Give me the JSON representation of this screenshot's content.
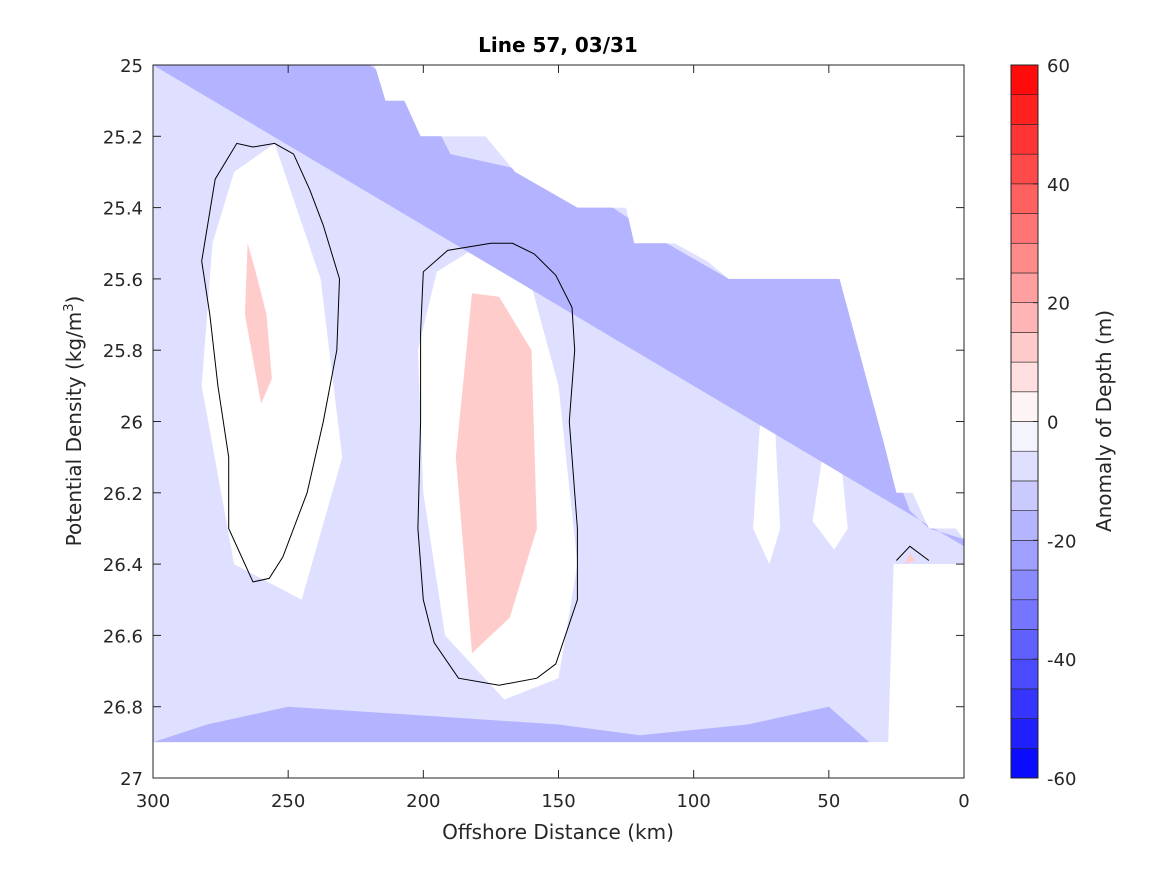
{
  "chart_data": {
    "type": "contour",
    "title": "Line 57, 03/31",
    "xlabel": "Offshore Distance (km)",
    "ylabel_main": "Potential Density (kg/m",
    "ylabel_sup": "3",
    "ylabel_tail": ")",
    "xlim": [
      300,
      0
    ],
    "ylim": [
      25,
      27
    ],
    "x_reversed": true,
    "y_reversed": true,
    "xticks": [
      300,
      250,
      200,
      150,
      100,
      50,
      0
    ],
    "yticks": [
      "25",
      "25.2",
      "25.4",
      "25.6",
      "25.8",
      "26",
      "26.2",
      "26.4",
      "26.6",
      "26.8",
      "27"
    ],
    "colorbar": {
      "label": "Anomaly of Depth (m)",
      "range": [
        -60,
        60
      ],
      "ticks": [
        60,
        40,
        20,
        0,
        -20,
        -40,
        -60
      ],
      "levels": [
        -60,
        -55,
        -50,
        -45,
        -40,
        -35,
        -30,
        -25,
        -20,
        -15,
        -10,
        -5,
        0,
        5,
        10,
        15,
        20,
        25,
        30,
        35,
        40,
        45,
        50,
        55,
        60
      ]
    },
    "data_boundary": {
      "x_km": [
        300,
        300,
        218,
        214,
        207,
        201,
        177,
        166,
        143,
        125,
        122,
        107,
        95,
        87,
        46,
        30,
        25,
        19,
        13,
        3,
        0,
        0,
        9,
        20,
        26,
        28,
        35,
        35,
        300
      ],
      "density": [
        26.9,
        25,
        25,
        25.1,
        25.1,
        25.2,
        25.2,
        25.3,
        25.4,
        25.4,
        25.5,
        25.5,
        25.55,
        25.6,
        25.6,
        26.05,
        26.2,
        26.2,
        26.3,
        26.3,
        26.33,
        26.4,
        26.4,
        26.4,
        26.4,
        26.9,
        26.9,
        26.9,
        26.9
      ]
    },
    "contour_features": [
      {
        "kind": "positive-core",
        "x_km": [
          255,
          270,
          278,
          282,
          270,
          245,
          230,
          238,
          255
        ],
        "density": [
          25.22,
          25.3,
          25.5,
          25.9,
          26.4,
          26.5,
          26.1,
          25.6,
          25.22
        ]
      },
      {
        "kind": "positive-core",
        "x_km": [
          178,
          195,
          202,
          200,
          192,
          170,
          150,
          143,
          150,
          160,
          178
        ],
        "density": [
          25.5,
          25.58,
          25.8,
          26.2,
          26.6,
          26.78,
          26.72,
          26.4,
          25.9,
          25.62,
          25.5
        ]
      },
      {
        "kind": "weak-positive",
        "x_km": [
          75,
          70,
          68,
          72,
          78,
          75
        ],
        "density": [
          25.95,
          26.0,
          26.3,
          26.4,
          26.3,
          25.95
        ]
      },
      {
        "kind": "weak-positive",
        "x_km": [
          52,
          45,
          43,
          48,
          56,
          52
        ],
        "density": [
          26.08,
          26.15,
          26.3,
          26.36,
          26.28,
          26.08
        ]
      },
      {
        "kind": "peak",
        "x_km": [
          265,
          262,
          258,
          256,
          260,
          266,
          265
        ],
        "density": [
          25.5,
          25.58,
          25.7,
          25.88,
          25.95,
          25.7,
          25.5
        ]
      },
      {
        "kind": "peak",
        "x_km": [
          182,
          172,
          160,
          158,
          168,
          182,
          188,
          182
        ],
        "density": [
          25.64,
          25.65,
          25.8,
          26.3,
          26.55,
          26.65,
          26.1,
          25.64
        ]
      },
      {
        "kind": "peak",
        "x_km": [
          18,
          20,
          22,
          18
        ],
        "density": [
          26.39,
          26.37,
          26.4,
          26.39
        ]
      },
      {
        "kind": "negative-core",
        "x_km": [
          300,
          280,
          240,
          220,
          200,
          190,
          160,
          130,
          110,
          87,
          55,
          46,
          30,
          20,
          13,
          0,
          0,
          300
        ],
        "density": [
          25,
          25,
          25,
          25,
          25.1,
          25.25,
          25.3,
          25.4,
          25.5,
          25.6,
          25.6,
          25.6,
          26.05,
          26.25,
          26.3,
          26.33,
          26.35,
          25
        ]
      },
      {
        "kind": "negative-core",
        "x_km": [
          300,
          280,
          250,
          210,
          150,
          120,
          80,
          50,
          35,
          300
        ],
        "density": [
          26.9,
          26.85,
          26.8,
          26.82,
          26.85,
          26.88,
          26.85,
          26.8,
          26.9,
          26.9
        ]
      }
    ],
    "zero_contours": [
      {
        "x_km": [
          263,
          269,
          277,
          282,
          279,
          276,
          272,
          272,
          263,
          257,
          252,
          243,
          237,
          232,
          231,
          237,
          242,
          248,
          255,
          263
        ],
        "density": [
          25.23,
          25.22,
          25.32,
          25.55,
          25.7,
          25.9,
          26.1,
          26.3,
          26.45,
          26.44,
          26.38,
          26.2,
          26.0,
          25.8,
          25.6,
          25.45,
          25.35,
          25.25,
          25.22,
          25.23
        ]
      },
      {
        "x_km": [
          175,
          191,
          200,
          201,
          201,
          202,
          200,
          196,
          187,
          172,
          158,
          151,
          143,
          143,
          146,
          144,
          145,
          151,
          159,
          167,
          175
        ],
        "density": [
          25.5,
          25.52,
          25.58,
          25.75,
          26.0,
          26.3,
          26.5,
          26.62,
          26.72,
          26.74,
          26.72,
          26.68,
          26.5,
          26.3,
          26.0,
          25.8,
          25.68,
          25.59,
          25.53,
          25.5,
          25.5
        ]
      },
      {
        "x_km": [
          25,
          20,
          13
        ],
        "density": [
          26.39,
          26.35,
          26.39
        ]
      }
    ]
  }
}
